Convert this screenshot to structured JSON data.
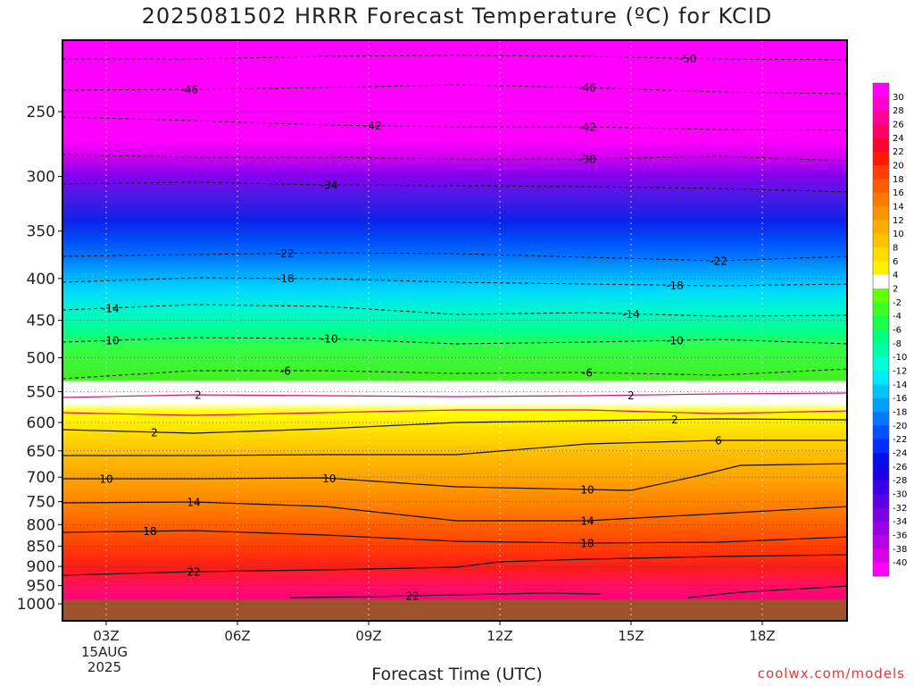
{
  "title": "2025081502 HRRR Forecast Temperature (ºC) for KCID",
  "xlabel": "Forecast Time (UTC)",
  "credit": "coolwx.com/models",
  "chart_data": {
    "type": "heatmap",
    "title": "2025081502 HRRR Forecast Temperature (ºC) for KCID",
    "xlabel": "Forecast Time (UTC)",
    "ylabel": "",
    "y_scale": "log-pressure (hPa)",
    "y_ticks": [
      250,
      300,
      350,
      400,
      450,
      500,
      550,
      600,
      650,
      700,
      750,
      800,
      850,
      900,
      950,
      1000
    ],
    "x_ticks": [
      {
        "hour": 3,
        "label": "03Z",
        "sub": [
          "15AUG",
          "2025"
        ]
      },
      {
        "hour": 6,
        "label": "06Z"
      },
      {
        "hour": 9,
        "label": "09Z"
      },
      {
        "hour": 12,
        "label": "12Z"
      },
      {
        "hour": 15,
        "label": "15Z"
      },
      {
        "hour": 18,
        "label": "18Z"
      }
    ],
    "xlim_hours": [
      2,
      20
    ],
    "ylim_hpa": [
      1040,
      200
    ],
    "surface_pressure_hpa": 988,
    "colorbar": {
      "levels": [
        30,
        28,
        26,
        24,
        22,
        20,
        18,
        16,
        14,
        12,
        10,
        8,
        6,
        4,
        2,
        -2,
        -4,
        -6,
        -8,
        -10,
        -12,
        -14,
        -16,
        -18,
        -20,
        -22,
        -24,
        -26,
        -28,
        -30,
        -32,
        -34,
        -36,
        -38,
        -40
      ],
      "colors": [
        "#ff00ff",
        "#ff00cc",
        "#ff0099",
        "#ff0066",
        "#ff0033",
        "#ff1a00",
        "#ff3d00",
        "#ff5e00",
        "#ff7a00",
        "#ff9400",
        "#ffad00",
        "#ffc400",
        "#ffdc00",
        "#fff200",
        "#ffffff",
        "#66ff00",
        "#3dff20",
        "#1aff4a",
        "#00ff7a",
        "#00ffa8",
        "#00ffd6",
        "#00eaff",
        "#00c4ff",
        "#009eff",
        "#0078ff",
        "#0052ff",
        "#002eff",
        "#0010e6",
        "#1a00e6",
        "#3a00e6",
        "#5a00e6",
        "#7a00e6",
        "#9a00e6",
        "#ba00e6",
        "#da00e6",
        "#ff00ff"
      ]
    },
    "contours": [
      {
        "level": -50,
        "style": "dashed",
        "labels": [
          {
            "hour": 16.3
          }
        ],
        "points": [
          [
            2,
            21
          ],
          [
            5,
            21
          ],
          [
            8,
            18
          ],
          [
            11,
            17
          ],
          [
            14,
            18
          ],
          [
            17,
            21
          ],
          [
            20,
            22
          ]
        ]
      },
      {
        "level": -46,
        "style": "dashed",
        "labels": [
          {
            "hour": 4.9
          },
          {
            "hour": 14
          }
        ],
        "points": [
          [
            2,
            56
          ],
          [
            5,
            55
          ],
          [
            8,
            53
          ],
          [
            11,
            50
          ],
          [
            14,
            53
          ],
          [
            17,
            58
          ],
          [
            20,
            60
          ]
        ]
      },
      {
        "level": -42,
        "style": "dashed",
        "labels": [
          {
            "hour": 9.1
          },
          {
            "hour": 14
          }
        ],
        "points": [
          [
            2,
            86
          ],
          [
            5,
            90
          ],
          [
            8,
            95
          ],
          [
            11,
            97
          ],
          [
            14,
            97
          ],
          [
            17,
            100
          ],
          [
            20,
            101
          ]
        ]
      },
      {
        "level": -38,
        "style": "dashed",
        "labels": [
          {
            "hour": 14
          }
        ],
        "points": [
          [
            2,
            128
          ],
          [
            5,
            131
          ],
          [
            8,
            131
          ],
          [
            11,
            133
          ],
          [
            14,
            133
          ],
          [
            17,
            130
          ],
          [
            20,
            135
          ]
        ]
      },
      {
        "level": -34,
        "style": "dashed",
        "labels": [
          {
            "hour": 8.1
          }
        ],
        "points": [
          [
            2,
            161
          ],
          [
            5,
            159
          ],
          [
            8,
            162
          ],
          [
            11,
            163
          ],
          [
            14,
            164
          ],
          [
            17,
            166
          ],
          [
            20,
            170
          ]
        ]
      },
      {
        "level": -22,
        "style": "dashed",
        "labels": [
          {
            "hour": 7.1
          },
          {
            "hour": 17
          }
        ],
        "points": [
          [
            2,
            242
          ],
          [
            5,
            240
          ],
          [
            8,
            238
          ],
          [
            11,
            239
          ],
          [
            14,
            243
          ],
          [
            17,
            247
          ],
          [
            20,
            242
          ]
        ]
      },
      {
        "level": -18,
        "style": "dashed",
        "labels": [
          {
            "hour": 7.1
          },
          {
            "hour": 16
          }
        ],
        "points": [
          [
            2,
            271
          ],
          [
            5,
            266
          ],
          [
            8,
            267
          ],
          [
            11,
            271
          ],
          [
            14,
            273
          ],
          [
            17,
            275
          ],
          [
            20,
            273
          ]
        ]
      },
      {
        "level": -14,
        "style": "dashed",
        "labels": [
          {
            "hour": 3.1
          },
          {
            "hour": 15
          }
        ],
        "points": [
          [
            2,
            302
          ],
          [
            5,
            296
          ],
          [
            8,
            298
          ],
          [
            11,
            307
          ],
          [
            14,
            305
          ],
          [
            17,
            309
          ],
          [
            20,
            308
          ]
        ]
      },
      {
        "level": -10,
        "style": "dashed",
        "labels": [
          {
            "hour": 3.1
          },
          {
            "hour": 8.1
          },
          {
            "hour": 16
          }
        ],
        "points": [
          [
            2,
            338
          ],
          [
            5,
            333
          ],
          [
            8,
            334
          ],
          [
            11,
            340
          ],
          [
            14,
            338
          ],
          [
            17,
            335
          ],
          [
            20,
            340
          ]
        ]
      },
      {
        "level": -6,
        "style": "dashed",
        "labels": [
          {
            "hour": 7.1
          },
          {
            "hour": 14
          }
        ],
        "points": [
          [
            2,
            379
          ],
          [
            5,
            370
          ],
          [
            8,
            370
          ],
          [
            11,
            373
          ],
          [
            14,
            372
          ],
          [
            17,
            375
          ],
          [
            20,
            368
          ]
        ]
      },
      {
        "level": 2,
        "style": "pink",
        "labels": [
          {
            "hour": 5.1
          },
          {
            "hour": 15
          }
        ],
        "points": [
          [
            2,
            400
          ],
          [
            5,
            397
          ],
          [
            8,
            398
          ],
          [
            11,
            399
          ],
          [
            14,
            398
          ],
          [
            17,
            396
          ],
          [
            20,
            395
          ]
        ]
      },
      {
        "level": 2,
        "style": "pink",
        "labels": [],
        "points": [
          [
            2,
            417
          ],
          [
            5,
            420
          ],
          [
            8,
            417
          ],
          [
            11,
            414
          ],
          [
            14,
            414
          ],
          [
            17,
            418
          ],
          [
            20,
            415
          ]
        ]
      },
      {
        "level": 2,
        "style": "solid",
        "labels": [
          {
            "hour": 4.1
          },
          {
            "hour": 16
          }
        ],
        "points": [
          [
            2,
            436
          ],
          [
            5,
            440
          ],
          [
            8,
            435
          ],
          [
            11,
            428
          ],
          [
            14,
            426
          ],
          [
            17,
            424
          ],
          [
            20,
            425
          ]
        ]
      },
      {
        "level": 6,
        "style": "solid",
        "labels": [
          {
            "hour": 17
          }
        ],
        "points": [
          [
            2,
            465
          ],
          [
            5,
            465
          ],
          [
            8,
            464
          ],
          [
            11,
            464
          ],
          [
            14,
            452
          ],
          [
            17,
            448
          ],
          [
            20,
            448
          ]
        ]
      },
      {
        "level": 10,
        "style": "solid",
        "labels": [
          {
            "hour": 3.0
          },
          {
            "hour": 8.1
          },
          {
            "hour": 14
          }
        ],
        "points": [
          [
            2,
            491
          ],
          [
            5,
            491
          ],
          [
            8,
            490
          ],
          [
            11,
            500
          ],
          [
            14,
            503
          ],
          [
            15,
            504
          ],
          [
            16.5,
            488
          ],
          [
            17.5,
            476
          ],
          [
            20,
            474
          ]
        ]
      },
      {
        "level": 14,
        "style": "solid",
        "labels": [
          {
            "hour": 5.0
          },
          {
            "hour": 14
          }
        ],
        "points": [
          [
            2,
            518
          ],
          [
            5,
            517
          ],
          [
            8,
            522
          ],
          [
            11,
            538
          ],
          [
            14,
            538
          ],
          [
            17,
            530
          ],
          [
            20,
            522
          ]
        ]
      },
      {
        "level": 18,
        "style": "solid",
        "labels": [
          {
            "hour": 4.0
          },
          {
            "hour": 14
          }
        ],
        "points": [
          [
            2,
            551
          ],
          [
            5,
            549
          ],
          [
            8,
            554
          ],
          [
            11,
            561
          ],
          [
            14,
            563
          ],
          [
            17,
            562
          ],
          [
            20,
            556
          ]
        ]
      },
      {
        "level": 22,
        "style": "solid",
        "labels": [
          {
            "hour": 5.0
          }
        ],
        "points": [
          [
            2,
            599
          ],
          [
            5,
            595
          ],
          [
            8,
            593
          ],
          [
            11,
            590
          ],
          [
            12,
            584
          ],
          [
            14,
            581
          ],
          [
            17,
            578
          ],
          [
            20,
            576
          ]
        ]
      },
      {
        "level": 22,
        "style": "solid",
        "labels": [
          {
            "hour": 10.0
          }
        ],
        "points": [
          [
            7.2,
            624
          ],
          [
            9,
            623
          ],
          [
            11,
            621
          ],
          [
            13,
            619
          ],
          [
            14.3,
            620
          ]
        ]
      },
      {
        "level": 22,
        "style": "solid",
        "labels": [],
        "points": [
          [
            16.3,
            624
          ],
          [
            17.5,
            618
          ],
          [
            20,
            611
          ]
        ]
      }
    ]
  }
}
